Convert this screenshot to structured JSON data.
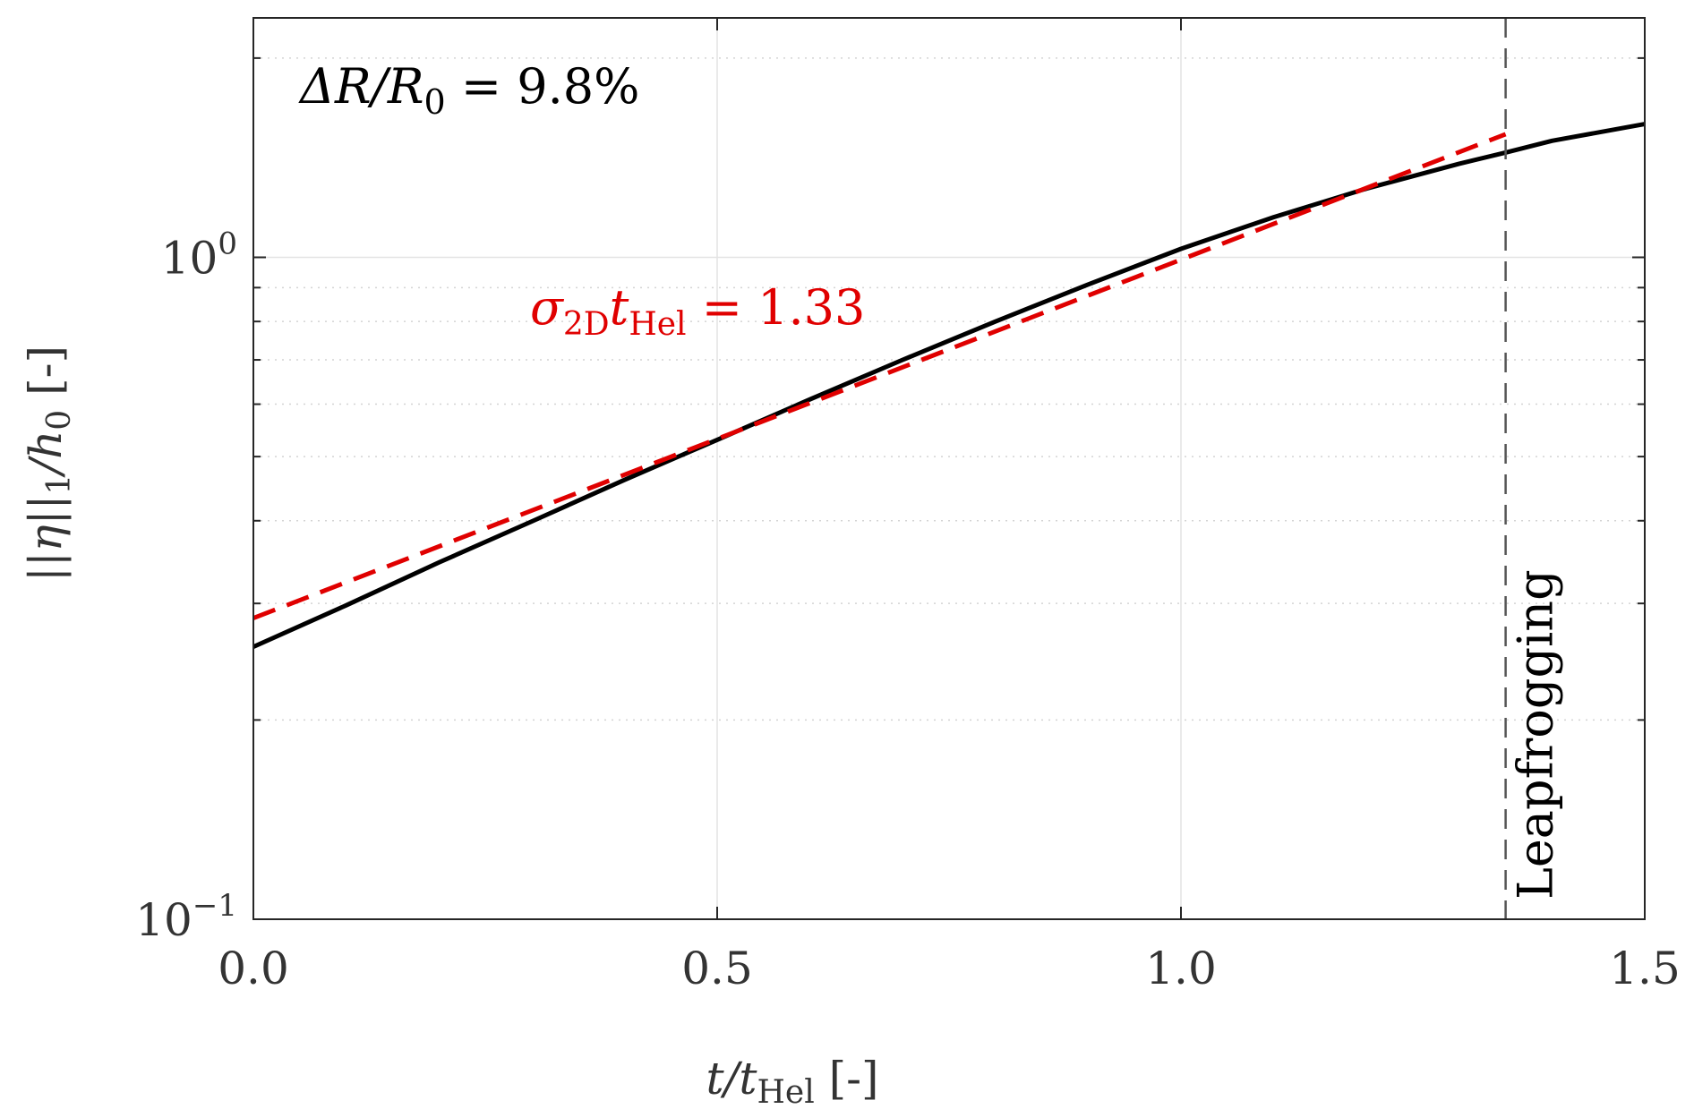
{
  "chart_data": {
    "type": "line",
    "xlabel": {
      "base": "t/t",
      "sub": "Hel",
      "suffix": " [-]"
    },
    "ylabel": {
      "pre": "||η||",
      "sub1": "1",
      "mid": "/h",
      "sub2": "0",
      "suffix": " [-]"
    },
    "xlim": [
      0,
      1.5
    ],
    "ylim": [
      0.1,
      2.3
    ],
    "yscale": "log",
    "x_ticks": [
      0,
      0.5,
      1.0,
      1.5
    ],
    "x_tick_labels": [
      "0.0",
      "0.5",
      "1.0",
      "1.5"
    ],
    "y_ticks": [
      {
        "value": 0.1,
        "base": "10",
        "exp": "−1"
      },
      {
        "value": 1,
        "base": "10",
        "exp": "0"
      }
    ],
    "grid": true,
    "series": [
      {
        "style": "solid",
        "color": "#000000",
        "x": [
          0,
          0.1,
          0.2,
          0.3,
          0.4,
          0.5,
          0.6,
          0.7,
          0.8,
          0.9,
          1.0,
          1.1,
          1.2,
          1.3,
          1.35,
          1.4,
          1.5
        ],
        "y": [
          0.258,
          0.298,
          0.346,
          0.399,
          0.461,
          0.53,
          0.61,
          0.7,
          0.8,
          0.91,
          1.03,
          1.15,
          1.27,
          1.385,
          1.44,
          1.5,
          1.59
        ]
      },
      {
        "style": "dashed",
        "color": "#e00000",
        "x": [
          0,
          1.35
        ],
        "y": [
          0.285,
          1.535
        ]
      }
    ],
    "vline": {
      "x": 1.35,
      "style": "dashed",
      "color": "#555555",
      "label": "Leapfrogging"
    },
    "annotations": [
      {
        "id": "radius",
        "parts": {
          "pre": "ΔR/R",
          "sub": "0",
          "post": " = 9.8%"
        },
        "color": "#000000"
      },
      {
        "id": "rate",
        "parts": {
          "pre": "σ",
          "sub1": "2D",
          "mid": "t",
          "sub2": "Hel",
          "post": " = 1.33"
        },
        "color": "#e00000"
      }
    ]
  }
}
